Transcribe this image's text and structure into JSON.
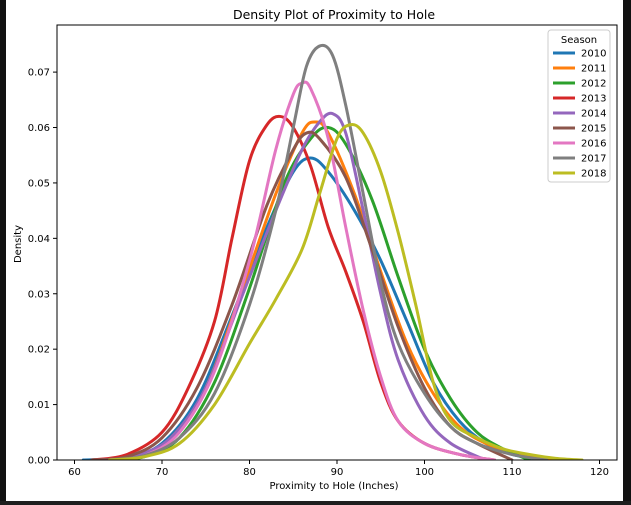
{
  "chart_data": {
    "type": "line",
    "title": "Density Plot of Proximity to Hole",
    "xlabel": "Proximity to Hole (Inches)",
    "ylabel": "Density",
    "xlim": [
      58,
      122
    ],
    "ylim": [
      0,
      0.0785
    ],
    "xticks": [
      60,
      70,
      80,
      90,
      100,
      110,
      120
    ],
    "yticks": [
      0.0,
      0.01,
      0.02,
      0.03,
      0.04,
      0.05,
      0.06,
      0.07
    ],
    "ytick_labels": [
      "0.00",
      "0.01",
      "0.02",
      "0.03",
      "0.04",
      "0.05",
      "0.06",
      "0.07"
    ],
    "grid": false,
    "legend": {
      "title": "Season",
      "placement": "top-right"
    },
    "series": [
      {
        "name": "2010",
        "color": "#1f77b4",
        "points": [
          [
            61,
            0
          ],
          [
            66,
            0.0005
          ],
          [
            70,
            0.003
          ],
          [
            74,
            0.011
          ],
          [
            78,
            0.026
          ],
          [
            82,
            0.042
          ],
          [
            85,
            0.052
          ],
          [
            87,
            0.0545
          ],
          [
            89,
            0.052
          ],
          [
            92,
            0.045
          ],
          [
            95,
            0.036
          ],
          [
            98,
            0.025
          ],
          [
            101,
            0.014
          ],
          [
            104,
            0.007
          ],
          [
            107,
            0.003
          ],
          [
            110,
            0.001
          ],
          [
            114,
            0
          ]
        ]
      },
      {
        "name": "2011",
        "color": "#ff7f0e",
        "points": [
          [
            62,
            0
          ],
          [
            67,
            0.0006
          ],
          [
            71,
            0.004
          ],
          [
            75,
            0.013
          ],
          [
            79,
            0.03
          ],
          [
            83,
            0.048
          ],
          [
            86,
            0.059
          ],
          [
            87.5,
            0.061
          ],
          [
            89,
            0.059
          ],
          [
            92,
            0.048
          ],
          [
            95,
            0.034
          ],
          [
            98,
            0.021
          ],
          [
            101,
            0.012
          ],
          [
            104,
            0.006
          ],
          [
            107,
            0.003
          ],
          [
            110,
            0.0015
          ],
          [
            113,
            0.0005
          ],
          [
            116,
            0
          ]
        ]
      },
      {
        "name": "2012",
        "color": "#2ca02c",
        "points": [
          [
            64,
            0
          ],
          [
            68,
            0.0006
          ],
          [
            72,
            0.004
          ],
          [
            76,
            0.014
          ],
          [
            80,
            0.031
          ],
          [
            84,
            0.05
          ],
          [
            87,
            0.058
          ],
          [
            89,
            0.06
          ],
          [
            91,
            0.057
          ],
          [
            94,
            0.047
          ],
          [
            97,
            0.033
          ],
          [
            100,
            0.02
          ],
          [
            103,
            0.011
          ],
          [
            106,
            0.005
          ],
          [
            109,
            0.002
          ],
          [
            112,
            0
          ]
        ]
      },
      {
        "name": "2013",
        "color": "#d62728",
        "points": [
          [
            62,
            0
          ],
          [
            66,
            0.001
          ],
          [
            70,
            0.005
          ],
          [
            73,
            0.013
          ],
          [
            76,
            0.025
          ],
          [
            78,
            0.04
          ],
          [
            80,
            0.054
          ],
          [
            82,
            0.0605
          ],
          [
            83.5,
            0.062
          ],
          [
            85,
            0.06
          ],
          [
            87,
            0.053
          ],
          [
            89,
            0.042
          ],
          [
            91,
            0.034
          ],
          [
            93,
            0.025
          ],
          [
            95,
            0.014
          ],
          [
            97,
            0.007
          ],
          [
            100,
            0.003
          ],
          [
            104,
            0.001
          ],
          [
            108,
            0
          ]
        ]
      },
      {
        "name": "2014",
        "color": "#9467bd",
        "points": [
          [
            63,
            0
          ],
          [
            67,
            0.0008
          ],
          [
            71,
            0.004
          ],
          [
            75,
            0.013
          ],
          [
            79,
            0.029
          ],
          [
            83,
            0.045
          ],
          [
            86,
            0.056
          ],
          [
            88,
            0.061
          ],
          [
            89.5,
            0.0625
          ],
          [
            91,
            0.059
          ],
          [
            93,
            0.045
          ],
          [
            95,
            0.03
          ],
          [
            97,
            0.018
          ],
          [
            100,
            0.008
          ],
          [
            103,
            0.003
          ],
          [
            107,
            0
          ]
        ]
      },
      {
        "name": "2015",
        "color": "#8c564b",
        "points": [
          [
            62,
            0
          ],
          [
            66,
            0.0006
          ],
          [
            70,
            0.004
          ],
          [
            74,
            0.013
          ],
          [
            78,
            0.028
          ],
          [
            82,
            0.046
          ],
          [
            85,
            0.056
          ],
          [
            86.5,
            0.059
          ],
          [
            88,
            0.058
          ],
          [
            91,
            0.051
          ],
          [
            94,
            0.038
          ],
          [
            97,
            0.024
          ],
          [
            100,
            0.013
          ],
          [
            103,
            0.006
          ],
          [
            106,
            0.003
          ],
          [
            110,
            0
          ]
        ]
      },
      {
        "name": "2016",
        "color": "#e377c2",
        "points": [
          [
            64,
            0
          ],
          [
            68,
            0.0008
          ],
          [
            72,
            0.005
          ],
          [
            76,
            0.016
          ],
          [
            80,
            0.036
          ],
          [
            83,
            0.056
          ],
          [
            85,
            0.066
          ],
          [
            86,
            0.068
          ],
          [
            87,
            0.067
          ],
          [
            89,
            0.058
          ],
          [
            91,
            0.042
          ],
          [
            93,
            0.027
          ],
          [
            95,
            0.015
          ],
          [
            97,
            0.007
          ],
          [
            100,
            0.003
          ],
          [
            104,
            0.001
          ],
          [
            108,
            0
          ]
        ]
      },
      {
        "name": "2017",
        "color": "#7f7f7f",
        "points": [
          [
            64,
            0
          ],
          [
            68,
            0.0008
          ],
          [
            72,
            0.004
          ],
          [
            76,
            0.012
          ],
          [
            80,
            0.028
          ],
          [
            83,
            0.045
          ],
          [
            85,
            0.06
          ],
          [
            86.5,
            0.071
          ],
          [
            88,
            0.0747
          ],
          [
            89.5,
            0.073
          ],
          [
            91,
            0.064
          ],
          [
            93,
            0.048
          ],
          [
            95,
            0.032
          ],
          [
            97,
            0.021
          ],
          [
            100,
            0.012
          ],
          [
            103,
            0.006
          ],
          [
            106,
            0.003
          ],
          [
            110,
            0.001
          ],
          [
            114,
            0
          ]
        ]
      },
      {
        "name": "2018",
        "color": "#bcbd22",
        "points": [
          [
            64,
            0
          ],
          [
            68,
            0.0006
          ],
          [
            72,
            0.003
          ],
          [
            76,
            0.01
          ],
          [
            80,
            0.021
          ],
          [
            83,
            0.029
          ],
          [
            86,
            0.038
          ],
          [
            88,
            0.048
          ],
          [
            90,
            0.058
          ],
          [
            91.5,
            0.0605
          ],
          [
            93,
            0.059
          ],
          [
            95,
            0.052
          ],
          [
            97,
            0.041
          ],
          [
            99,
            0.028
          ],
          [
            101,
            0.014
          ],
          [
            103,
            0.007
          ],
          [
            106,
            0.004
          ],
          [
            109,
            0.002
          ],
          [
            112,
            0.001
          ],
          [
            115,
            0.0003
          ],
          [
            118,
            0
          ]
        ]
      }
    ]
  }
}
